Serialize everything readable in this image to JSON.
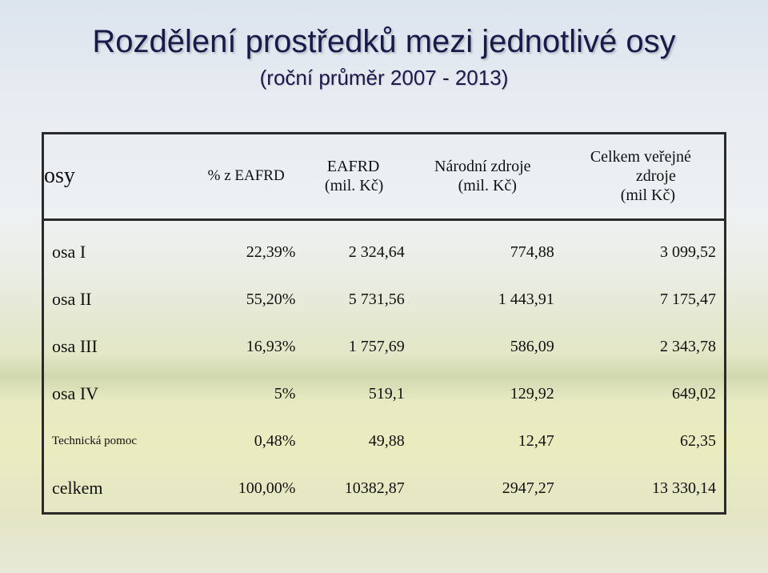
{
  "title": "Rozdělení prostředků mezi jednotlivé osy",
  "subtitle": "(roční průměr 2007 - 2013)",
  "table": {
    "headers": {
      "osy": "osy",
      "pct": "% z EAFRD",
      "eafrd_1": "EAFRD",
      "eafrd_2": "(mil. Kč)",
      "narodni_1": "Národní zdroje",
      "narodni_2": "(mil. Kč)",
      "celkem_1": "Celkem veřejné",
      "celkem_2": "zdroje",
      "celkem_3": "(mil Kč)"
    },
    "rows": [
      {
        "label": "osa I",
        "pct": "22,39%",
        "eafrd": "2 324,64",
        "narodni": "774,88",
        "celkem": "3 099,52"
      },
      {
        "label": "osa II",
        "pct": "55,20%",
        "eafrd": "5 731,56",
        "narodni": "1 443,91",
        "celkem": "7 175,47"
      },
      {
        "label": "osa III",
        "pct": "16,93%",
        "eafrd": "1 757,69",
        "narodni": "586,09",
        "celkem": "2 343,78"
      },
      {
        "label": "osa IV",
        "pct": "5%",
        "eafrd": "519,1",
        "narodni": "129,92",
        "celkem": "649,02"
      },
      {
        "label": "Technická pomoc",
        "pct": "0,48%",
        "eafrd": "49,88",
        "narodni": "12,47",
        "celkem": "62,35"
      },
      {
        "label": "celkem",
        "pct": "100,00%",
        "eafrd": "10382,87",
        "narodni": "2947,27",
        "celkem": "13 330,14"
      }
    ]
  }
}
